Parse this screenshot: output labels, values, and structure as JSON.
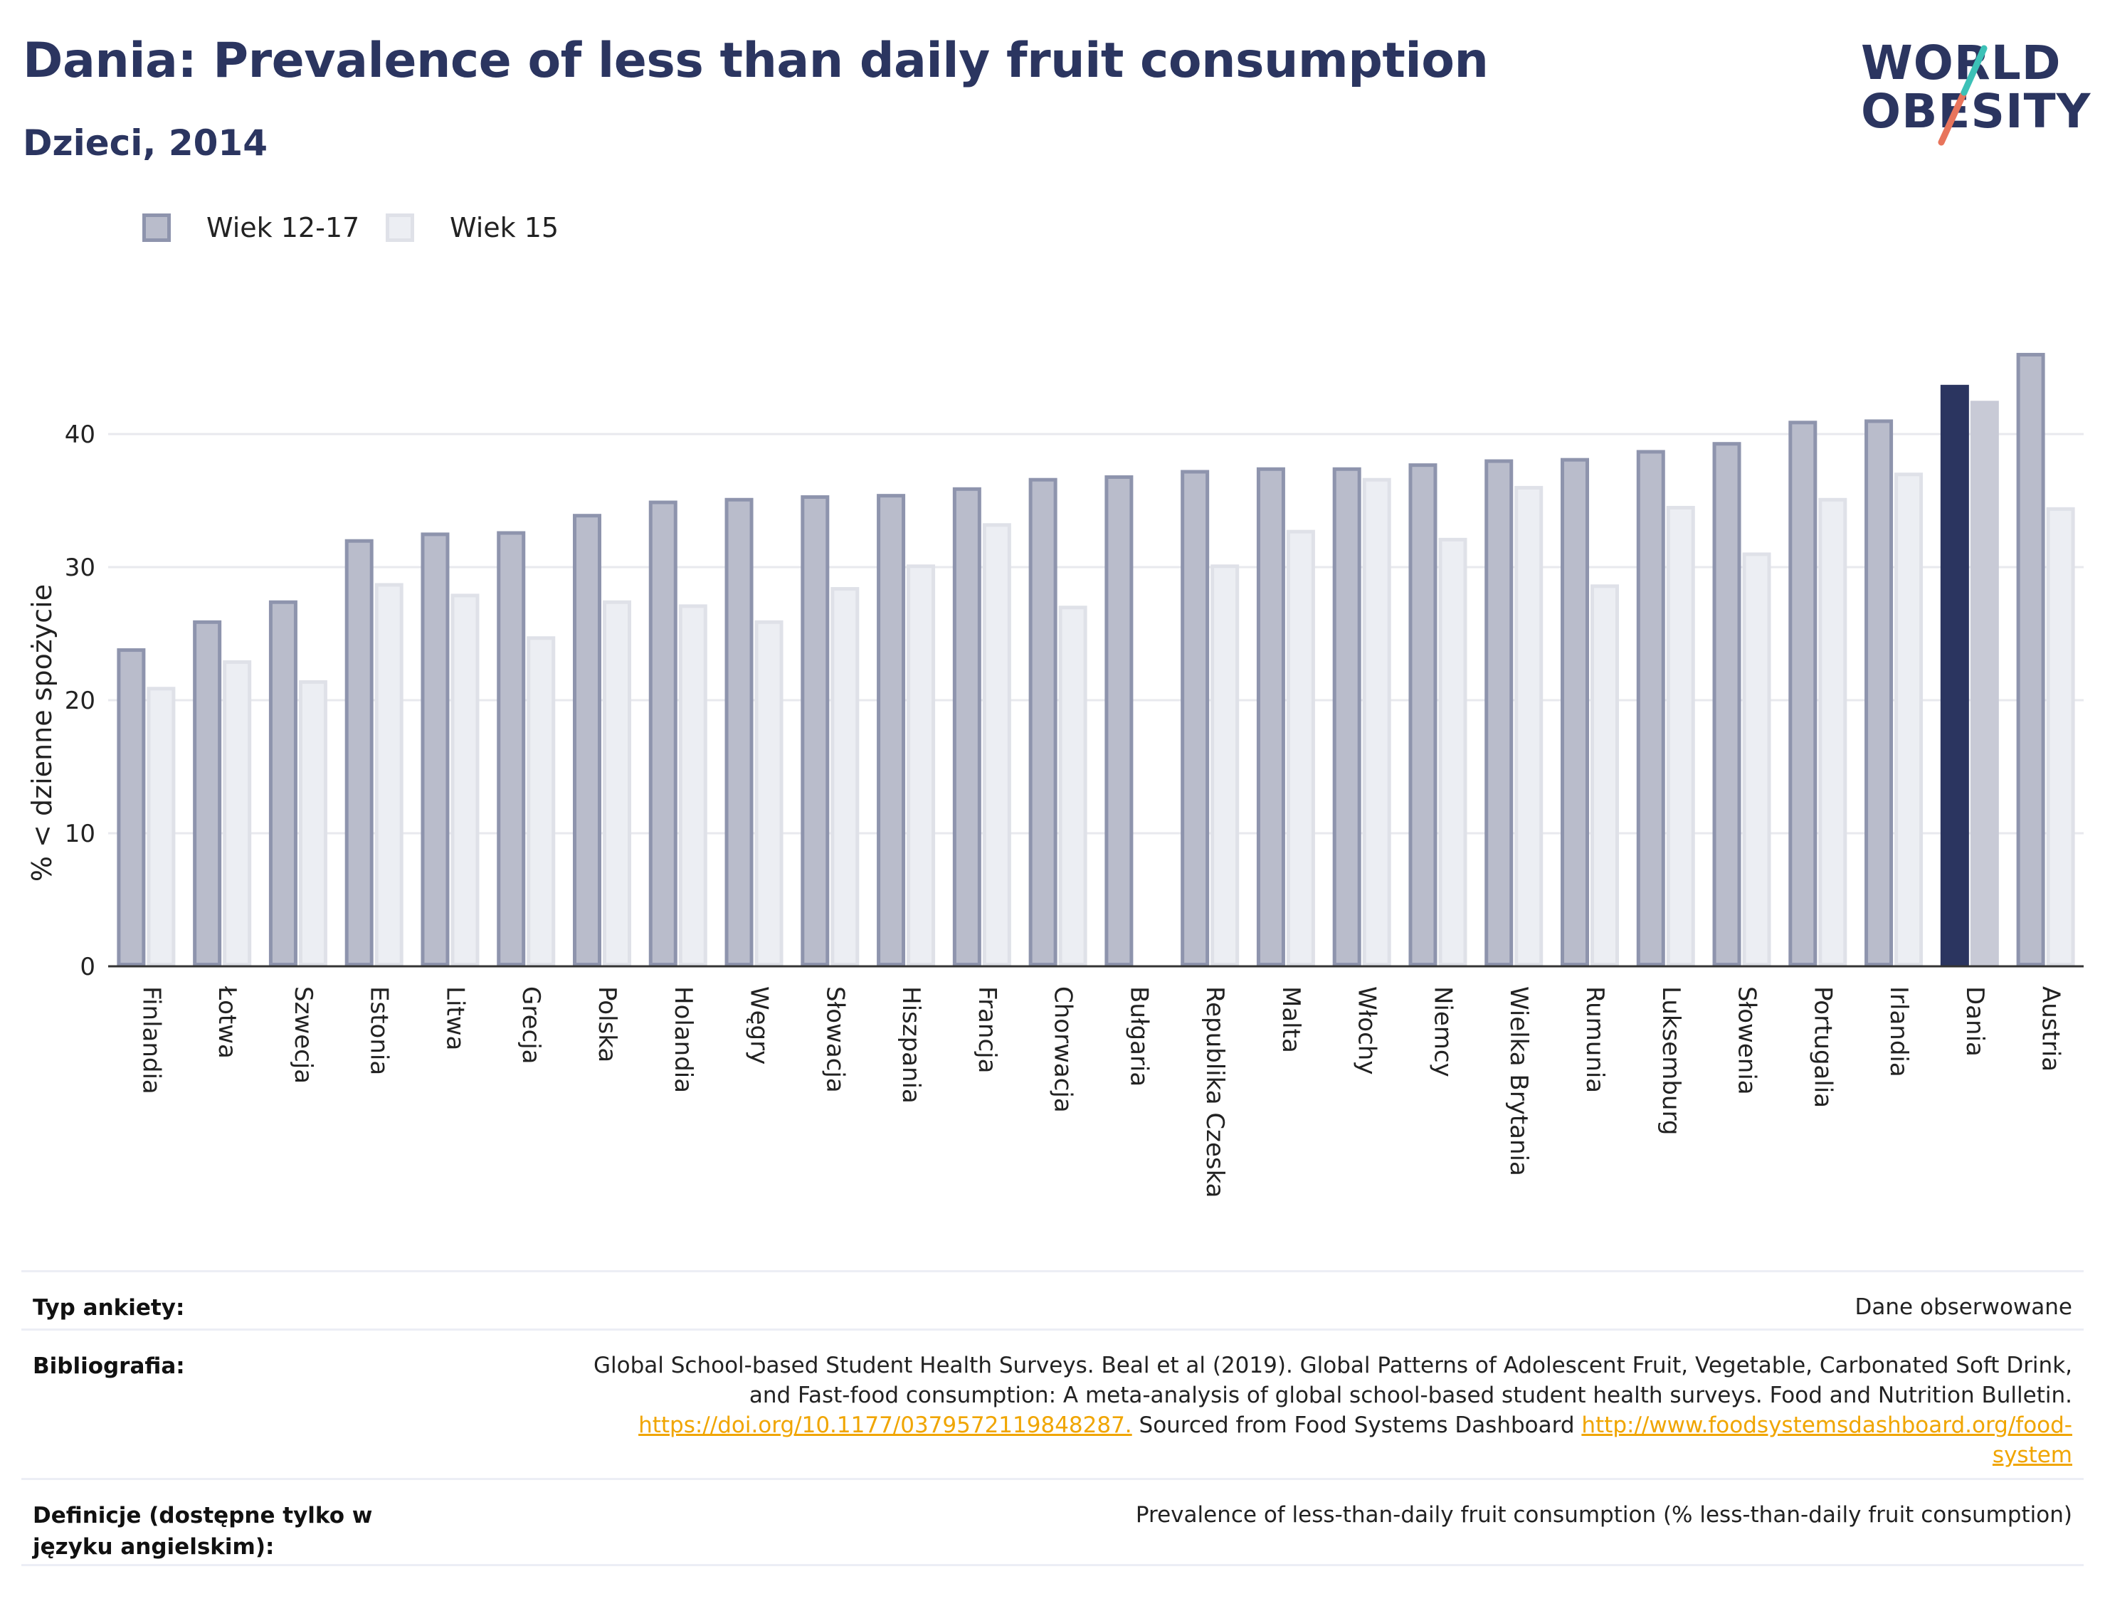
{
  "header": {
    "title": "Dania: Prevalence of less than daily fruit consumption",
    "subtitle": "Dzieci, 2014"
  },
  "logo": {
    "line1": "WORLD",
    "line2": "OBESITY"
  },
  "colors": {
    "series1_fill": "#b9bccb",
    "series1_stroke": "#8e94ad",
    "series2_fill": "#eceef3",
    "series2_stroke": "#dfe1e8",
    "highlight1": "#2b3560",
    "highlight2": "#c8cad6",
    "grid": "#e8e9ee",
    "axis": "#333333",
    "link": "#f0a500",
    "logo_teal": "#3cc1b7",
    "logo_coral": "#e8745b"
  },
  "chart_data": {
    "type": "bar",
    "ylabel": "% < dzienne spożycie",
    "ylim": [
      0,
      47
    ],
    "yticks": [
      0,
      10,
      20,
      30,
      40
    ],
    "grid": true,
    "legend_position": "top-left",
    "highlight": "Dania",
    "categories": [
      "Finlandia",
      "Łotwa",
      "Szwecja",
      "Estonia",
      "Litwa",
      "Grecja",
      "Polska",
      "Holandia",
      "Węgry",
      "Słowacja",
      "Hiszpania",
      "Francja",
      "Chorwacja",
      "Bułgaria",
      "Republika Czeska",
      "Malta",
      "Włochy",
      "Niemcy",
      "Wielka Brytania",
      "Rumunia",
      "Luksemburg",
      "Słowenia",
      "Portugalia",
      "Irlandia",
      "Dania",
      "Austria"
    ],
    "series": [
      {
        "name": "Wiek 12-17",
        "values": [
          23.9,
          26.0,
          27.5,
          32.1,
          32.6,
          32.7,
          34.0,
          35.0,
          35.2,
          35.4,
          35.5,
          36.0,
          36.7,
          36.9,
          37.3,
          37.5,
          37.5,
          37.8,
          38.1,
          38.2,
          38.8,
          39.4,
          41.0,
          41.1,
          43.7,
          46.1
        ]
      },
      {
        "name": "Wiek 15",
        "values": [
          21.0,
          23.0,
          21.5,
          28.8,
          28.0,
          24.8,
          27.5,
          27.2,
          26.0,
          28.5,
          30.2,
          33.3,
          27.1,
          null,
          30.2,
          32.8,
          36.7,
          32.2,
          36.1,
          28.7,
          34.6,
          31.1,
          35.2,
          37.1,
          42.5,
          34.5
        ]
      }
    ]
  },
  "info": {
    "survey_type_label": "Typ ankiety:",
    "survey_type_value": "Dane obserwowane",
    "bibliography_label": "Bibliografia:",
    "bibliography_line1": "Global School-based Student Health Surveys. Beal et al (2019). Global Patterns of Adolescent Fruit, Vegetable, Carbonated Soft Drink,",
    "bibliography_line2": "and Fast-food consumption: A meta-analysis of global school-based student health surveys. Food and Nutrition Bulletin.",
    "bibliography_link1": "https://doi.org/10.1177/0379572119848287.",
    "bibliography_mid": " Sourced from Food Systems Dashboard ",
    "bibliography_link2a": "http://www.foodsystemsdashboard.org/food-",
    "bibliography_link2b": "system",
    "definitions_label": "Definicje (dostępne tylko w języku angielskim):",
    "definitions_value": "Prevalence of less-than-daily fruit consumption (% less-than-daily fruit consumption)"
  }
}
